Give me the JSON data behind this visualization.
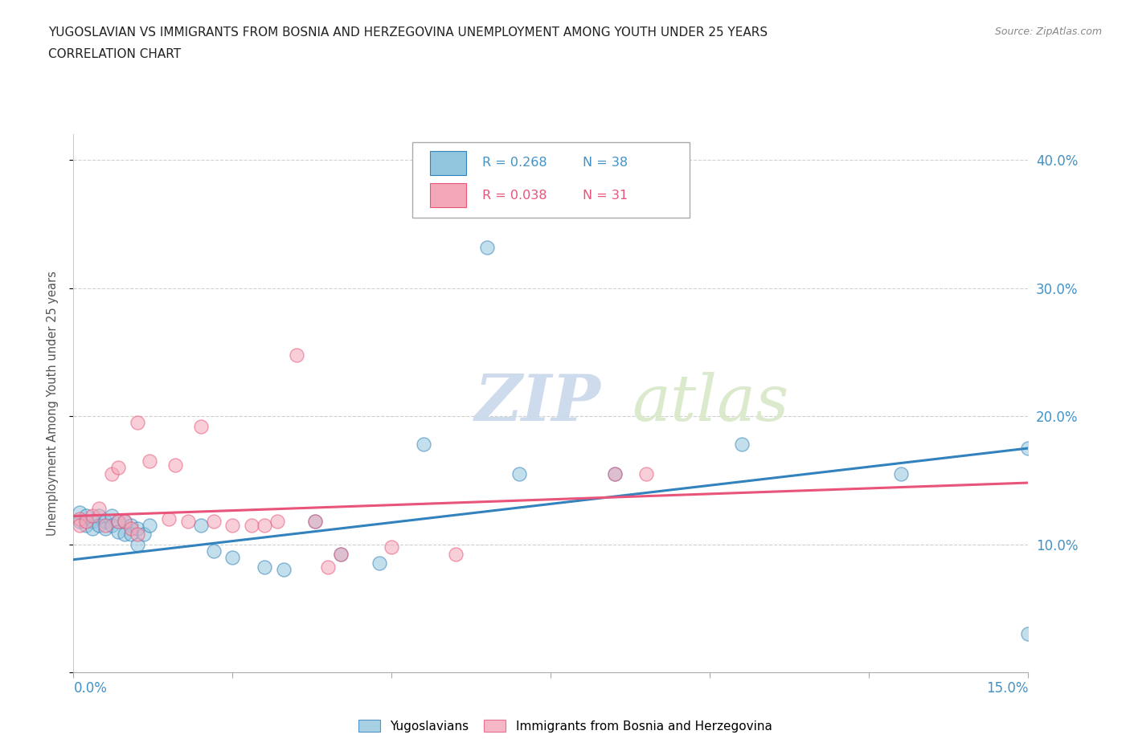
{
  "title_line1": "YUGOSLAVIAN VS IMMIGRANTS FROM BOSNIA AND HERZEGOVINA UNEMPLOYMENT AMONG YOUTH UNDER 25 YEARS",
  "title_line2": "CORRELATION CHART",
  "source": "Source: ZipAtlas.com",
  "ylabel": "Unemployment Among Youth under 25 years",
  "x_min": 0.0,
  "x_max": 0.15,
  "y_min": 0.0,
  "y_max": 0.42,
  "x_ticks": [
    0.0,
    0.025,
    0.05,
    0.075,
    0.1,
    0.125,
    0.15
  ],
  "y_ticks": [
    0.0,
    0.1,
    0.2,
    0.3,
    0.4
  ],
  "y_tick_labels": [
    "",
    "10.0%",
    "20.0%",
    "30.0%",
    "40.0%"
  ],
  "color_blue": "#92c5de",
  "color_pink": "#f4a7b9",
  "color_blue_line": "#3182bd",
  "color_pink_line": "#e8547a",
  "color_blue_text": "#4292c6",
  "color_pink_text": "#e8547a",
  "legend_R1": "R = 0.268",
  "legend_N1": "N = 38",
  "legend_R2": "R = 0.038",
  "legend_N2": "N = 31",
  "watermark_zip": "ZIP",
  "watermark_atlas": "atlas",
  "blue_scatter_x": [
    0.001,
    0.001,
    0.002,
    0.002,
    0.003,
    0.003,
    0.004,
    0.004,
    0.005,
    0.005,
    0.006,
    0.006,
    0.007,
    0.007,
    0.008,
    0.008,
    0.009,
    0.009,
    0.01,
    0.01,
    0.011,
    0.012,
    0.02,
    0.022,
    0.025,
    0.03,
    0.033,
    0.038,
    0.042,
    0.048,
    0.055,
    0.065,
    0.07,
    0.085,
    0.105,
    0.13,
    0.15,
    0.15
  ],
  "blue_scatter_y": [
    0.125,
    0.118,
    0.122,
    0.115,
    0.118,
    0.112,
    0.122,
    0.115,
    0.118,
    0.112,
    0.122,
    0.115,
    0.118,
    0.11,
    0.118,
    0.108,
    0.115,
    0.108,
    0.112,
    0.1,
    0.108,
    0.115,
    0.115,
    0.095,
    0.09,
    0.082,
    0.08,
    0.118,
    0.092,
    0.085,
    0.178,
    0.332,
    0.155,
    0.155,
    0.178,
    0.155,
    0.175,
    0.03
  ],
  "pink_scatter_x": [
    0.001,
    0.001,
    0.002,
    0.003,
    0.004,
    0.005,
    0.006,
    0.007,
    0.007,
    0.008,
    0.009,
    0.01,
    0.01,
    0.012,
    0.015,
    0.016,
    0.018,
    0.02,
    0.022,
    0.025,
    0.028,
    0.03,
    0.032,
    0.035,
    0.038,
    0.04,
    0.042,
    0.05,
    0.06,
    0.085,
    0.09
  ],
  "pink_scatter_y": [
    0.12,
    0.115,
    0.118,
    0.122,
    0.128,
    0.115,
    0.155,
    0.16,
    0.118,
    0.118,
    0.112,
    0.108,
    0.195,
    0.165,
    0.12,
    0.162,
    0.118,
    0.192,
    0.118,
    0.115,
    0.115,
    0.115,
    0.118,
    0.248,
    0.118,
    0.082,
    0.092,
    0.098,
    0.092,
    0.155,
    0.155
  ],
  "blue_line_x": [
    0.0,
    0.15
  ],
  "blue_line_y": [
    0.088,
    0.175
  ],
  "pink_line_x": [
    0.0,
    0.15
  ],
  "pink_line_y": [
    0.122,
    0.148
  ]
}
